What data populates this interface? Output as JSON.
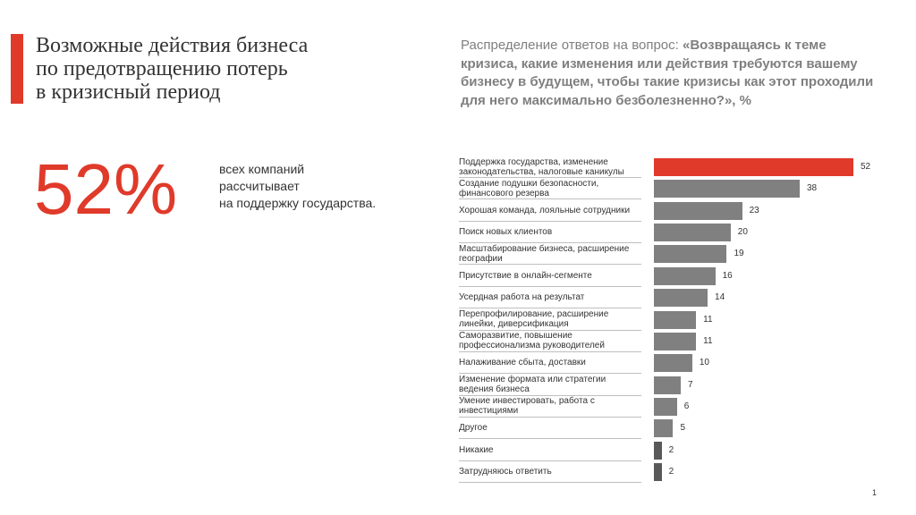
{
  "title": [
    "Возможные действия бизнеса",
    "по предотвращению потерь",
    "в кризисный период"
  ],
  "highlight": {
    "value": "52%",
    "text": [
      "всех компаний",
      "рассчитывает",
      "на поддержку государства."
    ]
  },
  "chart_data": {
    "type": "bar",
    "orientation": "horizontal",
    "title": "Распределение  ответов на вопрос: ",
    "subtitle": "«Возвращаясь к теме кризиса, какие изменения или действия требуются вашему бизнесу в будущем, чтобы такие кризисы как этот проходили для него максимально безболезненно?», %",
    "categories": [
      "Поддержка государства, изменение законодательства, налоговые каникулы",
      "Создание подушки безопасности, финансового резерва",
      "Хорошая команда, лояльные сотрудники",
      "Поиск новых клиентов",
      "Масштабирование бизнеса, расширение географии",
      "Присутствие в онлайн-сегменте",
      "Усердная работа на результат",
      "Перепрофилирование, расширение линейки, диверсификация",
      "Саморазвитие, повышение профессионализма руководителей",
      "Налаживание сбыта, доставки",
      "Изменение формата или стратегии ведения бизнеса",
      "Умение инвестировать, работа с инвестициями",
      "Другое",
      "Никакие",
      "Затрудняюсь ответить"
    ],
    "values": [
      52,
      38,
      23,
      20,
      19,
      16,
      14,
      11,
      11,
      10,
      7,
      6,
      5,
      2,
      2
    ],
    "colors": [
      "#e03a2a",
      "#808080",
      "#808080",
      "#808080",
      "#808080",
      "#808080",
      "#808080",
      "#808080",
      "#808080",
      "#808080",
      "#808080",
      "#808080",
      "#808080",
      "#595959",
      "#595959"
    ]
  },
  "page_number": "1"
}
